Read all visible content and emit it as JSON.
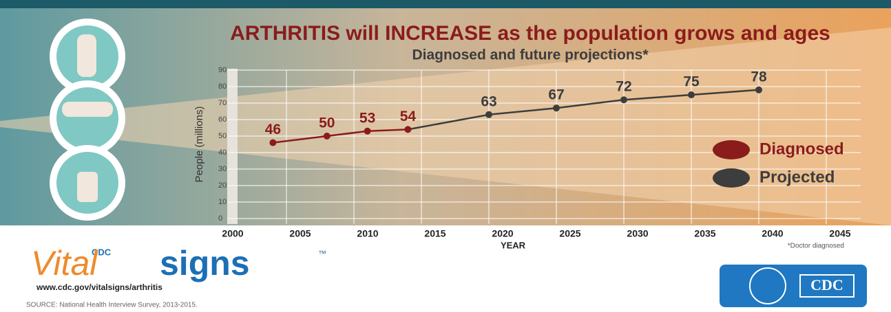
{
  "chart_data": {
    "type": "line",
    "title": "ARTHRITIS will INCREASE as the population grows and ages",
    "subtitle": "Diagnosed and future projections*",
    "y_label": "People (millions)",
    "x_label": "YEAR",
    "footnote": "*Doctor diagnosed",
    "xlim": [
      2000,
      2045
    ],
    "xticks": [
      2000,
      2005,
      2010,
      2015,
      2020,
      2025,
      2030,
      2035,
      2040,
      2045
    ],
    "ylim": [
      0,
      90
    ],
    "yticks": [
      0,
      10,
      20,
      30,
      40,
      50,
      60,
      70,
      80,
      90
    ],
    "grid": true,
    "series": [
      {
        "name": "Diagnosed",
        "color": "#8a1c1c",
        "x": [
          2004,
          2008,
          2011,
          2014
        ],
        "values": [
          46,
          50,
          53,
          54
        ]
      },
      {
        "name": "Projected",
        "color": "#3d3d3d",
        "x": [
          2020,
          2025,
          2030,
          2035,
          2040
        ],
        "values": [
          63,
          67,
          72,
          75,
          78
        ]
      }
    ]
  },
  "branding": {
    "cdc_small": "CDC",
    "vital": "Vital",
    "signs": "signs",
    "tm": "™",
    "url": "www.cdc.gov/vitalsigns/arthritis",
    "source": "SOURCE: National Health Interview Survey, 2013-2015.",
    "cdc_logo": "CDC"
  }
}
